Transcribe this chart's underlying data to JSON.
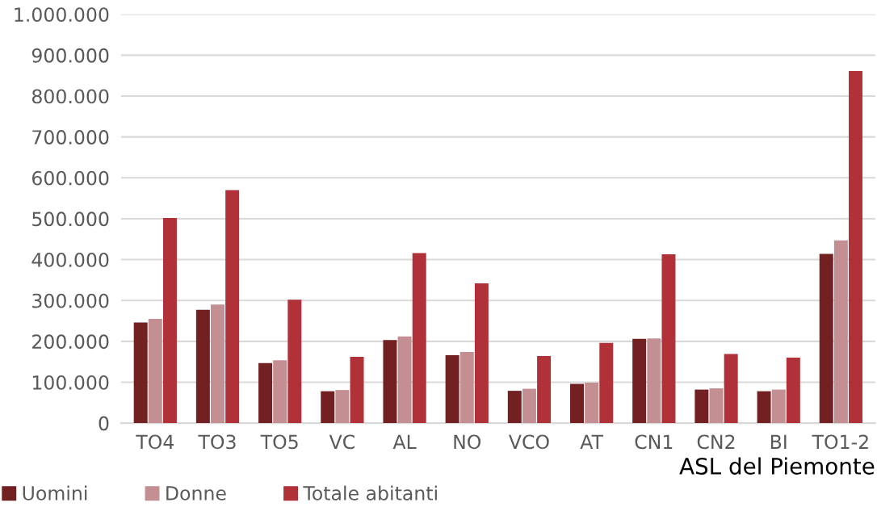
{
  "chart_data": {
    "type": "bar",
    "xlabel": "ASL del Piemonte",
    "categories": [
      "TO4",
      "TO3",
      "TO5",
      "VC",
      "AL",
      "NO",
      "VCO",
      "AT",
      "CN1",
      "CN2",
      "BI",
      "TO1-2"
    ],
    "series": [
      {
        "name": "Uomini",
        "color": "#722022",
        "values": [
          246000,
          277000,
          147000,
          78000,
          203000,
          166000,
          79000,
          96000,
          206000,
          82000,
          78000,
          414000
        ]
      },
      {
        "name": "Donne",
        "color": "#c48f93",
        "values": [
          255000,
          290000,
          154000,
          81000,
          212000,
          174000,
          84000,
          99000,
          207000,
          85000,
          82000,
          447000
        ]
      },
      {
        "name": "Totale abitanti",
        "color": "#b03238",
        "values": [
          502000,
          570000,
          302000,
          162000,
          416000,
          342000,
          164000,
          196000,
          413000,
          169000,
          160000,
          861000
        ]
      }
    ],
    "ylim": [
      0,
      1000000
    ],
    "yticks": [
      {
        "value": 0,
        "label": "0"
      },
      {
        "value": 100000,
        "label": "100.000"
      },
      {
        "value": 200000,
        "label": "200.000"
      },
      {
        "value": 300000,
        "label": "300.000"
      },
      {
        "value": 400000,
        "label": "400.000"
      },
      {
        "value": 500000,
        "label": "500.000"
      },
      {
        "value": 600000,
        "label": "600.000"
      },
      {
        "value": 700000,
        "label": "700.000"
      },
      {
        "value": 800000,
        "label": "800.000"
      },
      {
        "value": 900000,
        "label": "900.000"
      },
      {
        "value": 1000000,
        "label": "1.000.000"
      }
    ],
    "grid": "y",
    "legend": "bottom"
  }
}
